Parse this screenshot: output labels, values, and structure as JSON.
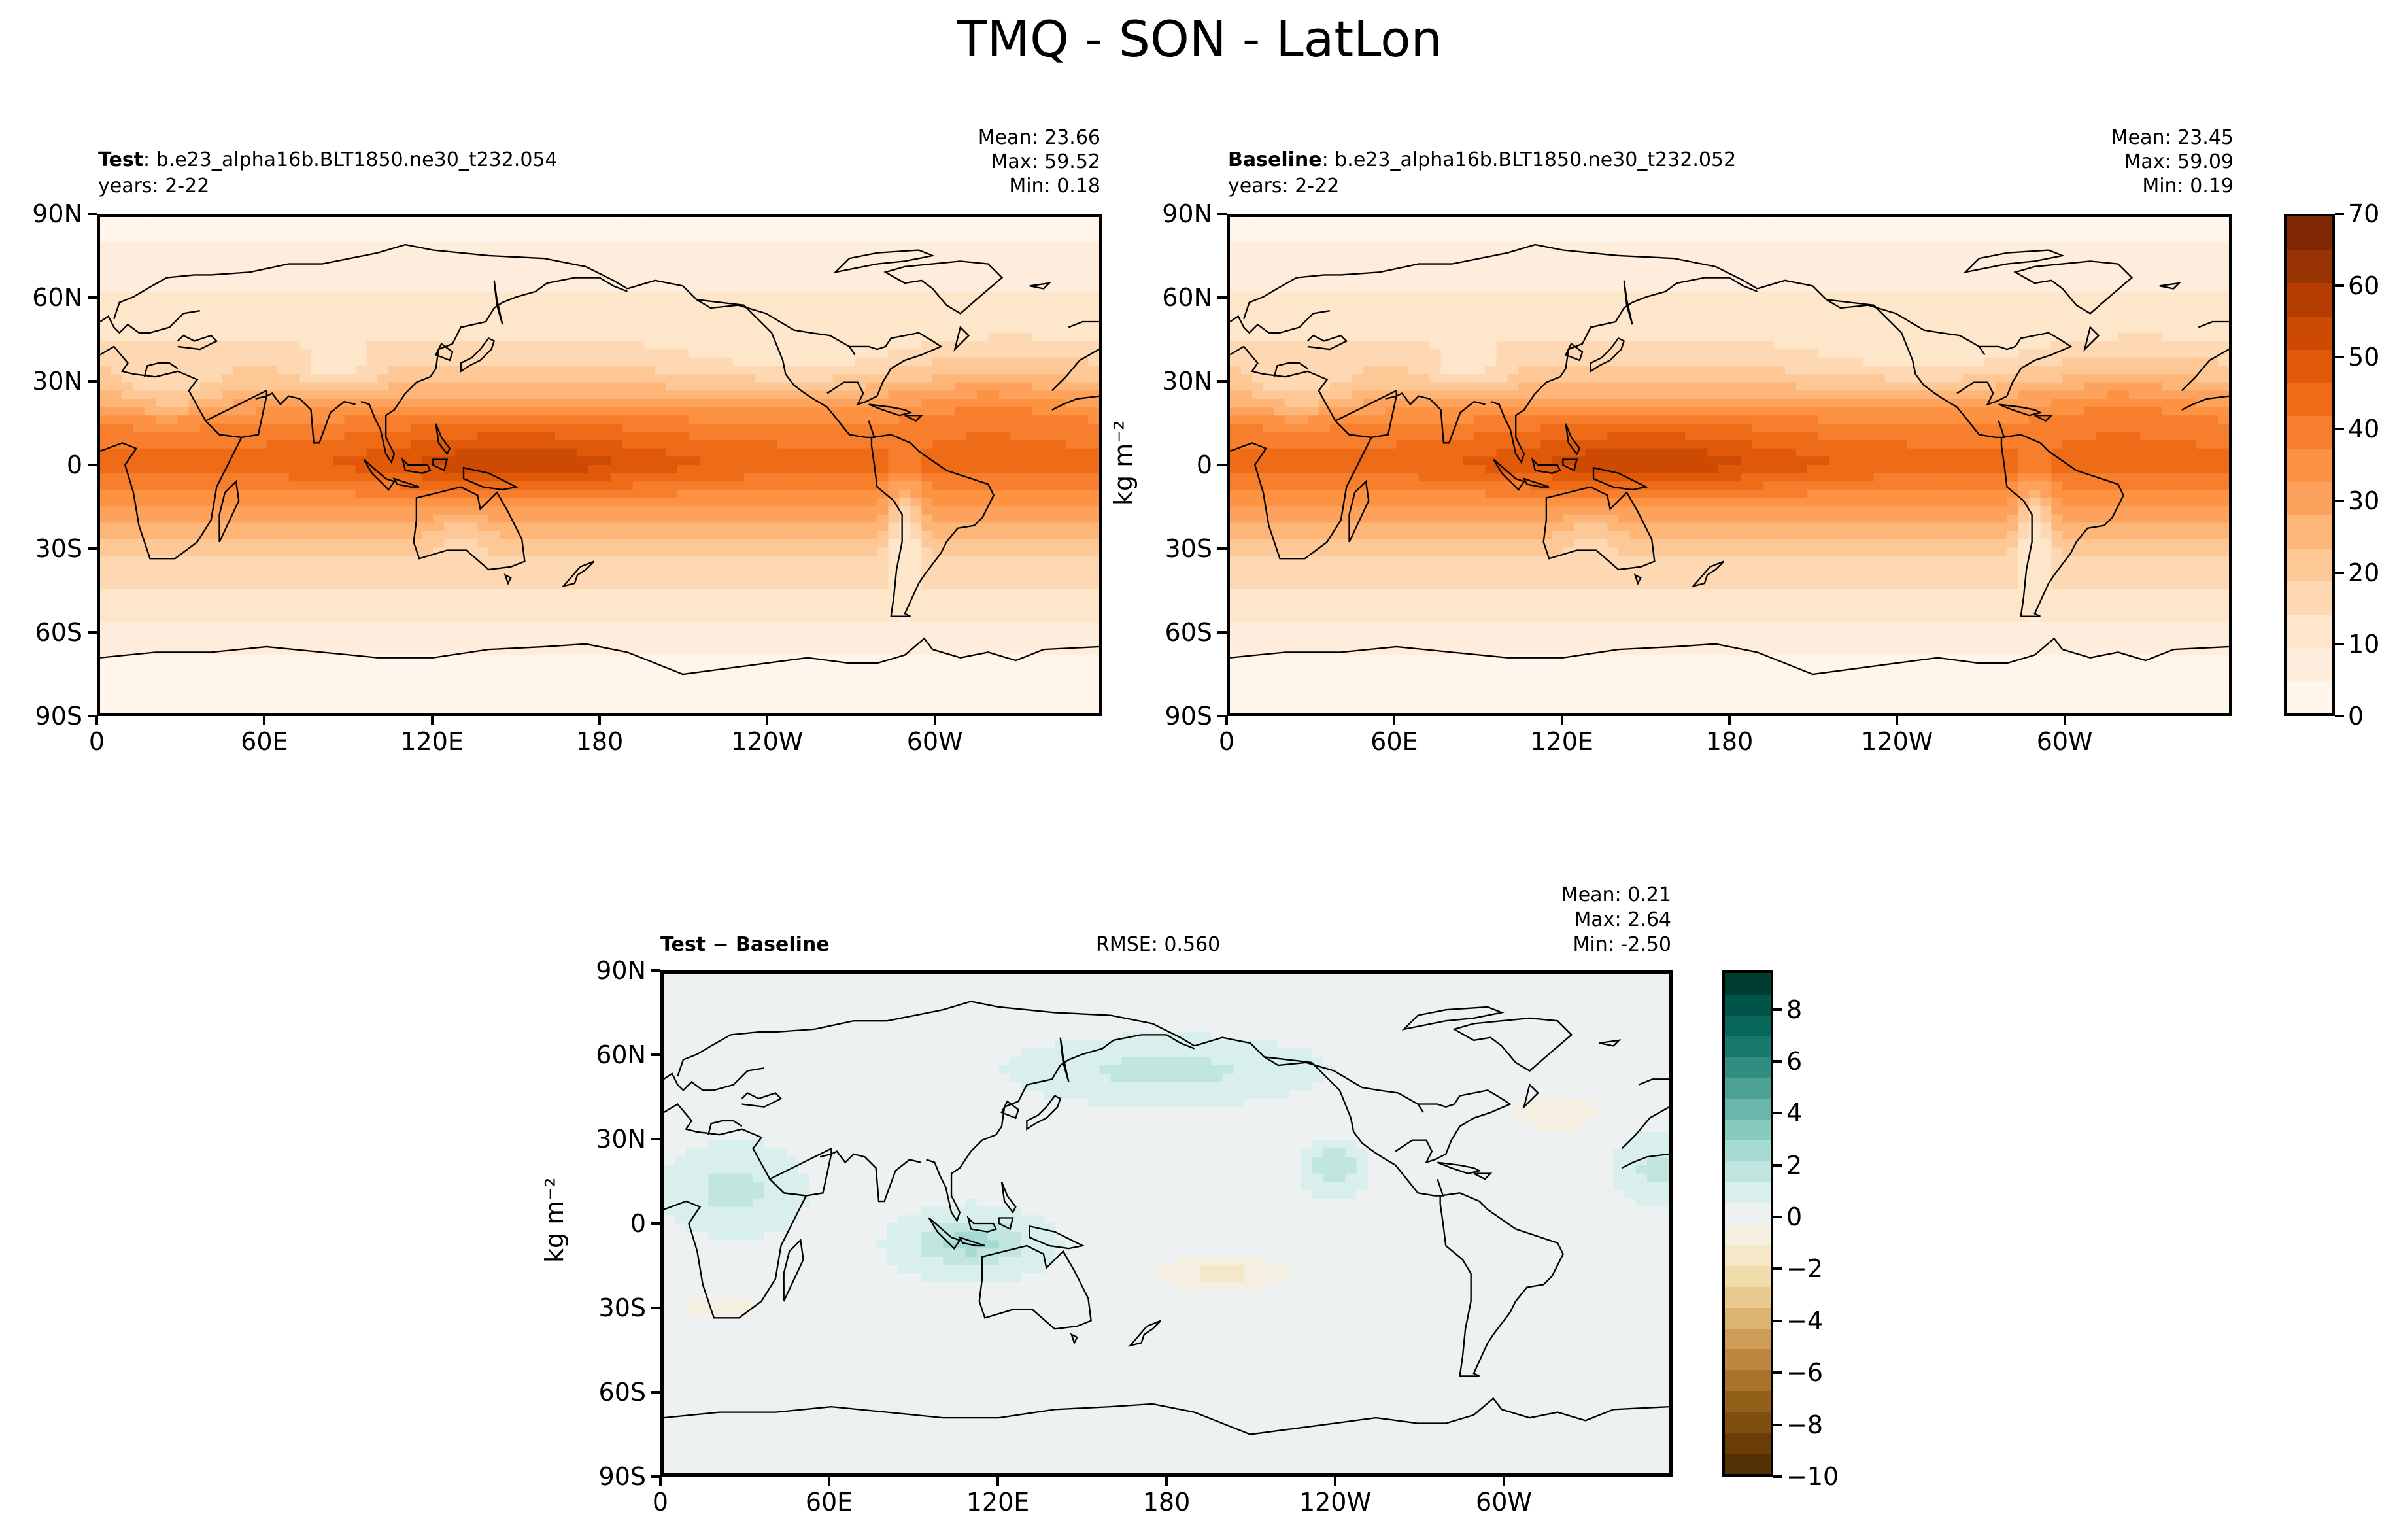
{
  "suptitle": "TMQ - SON - LatLon",
  "colors": {
    "seq": [
      "#fff5eb",
      "#feeddc",
      "#fee6cb",
      "#fdd8b2",
      "#fdc895",
      "#fdb678",
      "#fda25c",
      "#fd9243",
      "#f67e2c",
      "#ee6b17",
      "#df5909",
      "#cd4a02",
      "#b53d02",
      "#983303",
      "#7f2704"
    ],
    "div": [
      "#543005",
      "#6a3d07",
      "#7e4f0f",
      "#93601a",
      "#a97329",
      "#be873f",
      "#cd9c57",
      "#dcb371",
      "#e8c98f",
      "#f1dcac",
      "#f5e8c8",
      "#f5efe1",
      "#eef1f1",
      "#d9efeb",
      "#c0e6df",
      "#a4dad1",
      "#87cbbf",
      "#68b7aa",
      "#4ca395",
      "#2f8e80",
      "#18796b",
      "#08665a",
      "#005448",
      "#003c30"
    ]
  },
  "top_left": {
    "label_bold": "Test",
    "label": ": b.e23_alpha16b.BLT1850.ne30_t232.054",
    "years": "years: 2-22",
    "stats": [
      "Mean: 23.66",
      "Max: 59.52",
      "Min:  0.18"
    ]
  },
  "top_right": {
    "label_bold": "Baseline",
    "label": ": b.e23_alpha16b.BLT1850.ne30_t232.052",
    "years": "years: 2-22",
    "stats": [
      "Mean: 23.45",
      "Max: 59.09",
      "Min:  0.19"
    ],
    "ylabel": "kg m⁻²"
  },
  "diff": {
    "label": "Test − Baseline",
    "rmse": "RMSE: 0.560",
    "stats": [
      "Mean:  0.21",
      "Max:  2.64",
      "Min: -2.50"
    ],
    "ylabel": "kg m⁻²"
  },
  "axes": {
    "lon_ticks": [
      "0",
      "60E",
      "120E",
      "180",
      "120W",
      "60W"
    ],
    "lat_ticks": [
      "90N",
      "60N",
      "30N",
      "0",
      "30S",
      "60S",
      "90S"
    ]
  },
  "colorbar_top": {
    "min": 0,
    "max": 70,
    "ticks": [
      "70",
      "60",
      "50",
      "40",
      "30",
      "20",
      "10",
      "0"
    ]
  },
  "colorbar_diff": {
    "min": -10,
    "max": 9.5,
    "ticks": [
      "8",
      "6",
      "4",
      "2",
      "0",
      "−2",
      "−4",
      "−6",
      "−8",
      "−10"
    ]
  },
  "chart_data": [
    {
      "type": "heatmap",
      "title": "Test",
      "subtitle": "b.e23_alpha16b.BLT1850.ne30_t232.054, years: 2-22",
      "variable": "TMQ",
      "units": "kg m⁻²",
      "xlim": [
        0,
        360
      ],
      "ylim": [
        -90,
        90
      ],
      "colormap": "Oranges",
      "vmin": 0,
      "vmax": 70,
      "zonal_profile": {
        "lat": [
          -90,
          -75,
          -60,
          -45,
          -30,
          -15,
          0,
          15,
          30,
          45,
          60,
          75,
          90
        ],
        "value": [
          1,
          3,
          8,
          14,
          20,
          32,
          45,
          38,
          22,
          14,
          10,
          6,
          3
        ]
      },
      "stats": {
        "mean": 23.66,
        "max": 59.52,
        "min": 0.18
      }
    },
    {
      "type": "heatmap",
      "title": "Baseline",
      "subtitle": "b.e23_alpha16b.BLT1850.ne30_t232.052, years: 2-22",
      "variable": "TMQ",
      "units": "kg m⁻²",
      "xlim": [
        0,
        360
      ],
      "ylim": [
        -90,
        90
      ],
      "colormap": "Oranges",
      "vmin": 0,
      "vmax": 70,
      "zonal_profile": {
        "lat": [
          -90,
          -75,
          -60,
          -45,
          -30,
          -15,
          0,
          15,
          30,
          45,
          60,
          75,
          90
        ],
        "value": [
          1,
          3,
          8,
          14,
          20,
          32,
          45,
          38,
          22,
          14,
          10,
          6,
          3
        ]
      },
      "stats": {
        "mean": 23.45,
        "max": 59.09,
        "min": 0.19
      }
    },
    {
      "type": "heatmap",
      "title": "Test − Baseline",
      "units": "kg m⁻²",
      "xlim": [
        0,
        360
      ],
      "ylim": [
        -90,
        90
      ],
      "colormap": "BrBG",
      "vmin": -10,
      "vmax": 9.5,
      "rmse": 0.56,
      "stats": {
        "mean": 0.21,
        "max": 2.64,
        "min": -2.5
      }
    }
  ]
}
